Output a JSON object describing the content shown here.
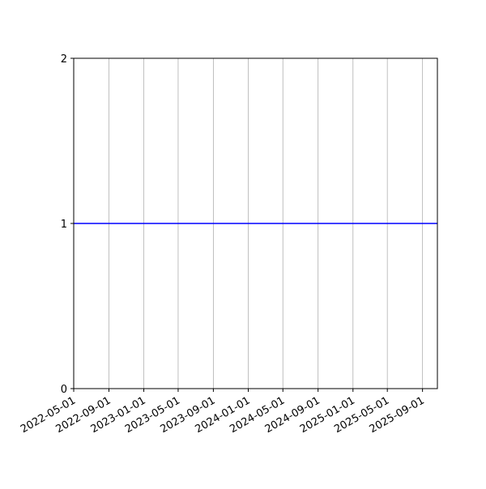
{
  "chart_data": {
    "type": "line",
    "title": "",
    "xlabel": "",
    "ylabel": "",
    "x_axis_type": "date",
    "xlim": [
      "2022-05-01",
      "2025-10-23"
    ],
    "ylim": [
      0,
      2
    ],
    "x_ticks": [
      "2022-05-01",
      "2022-09-01",
      "2023-01-01",
      "2023-05-01",
      "2023-09-01",
      "2024-01-01",
      "2024-05-01",
      "2024-09-01",
      "2025-01-01",
      "2025-05-01",
      "2025-09-01"
    ],
    "y_ticks": [
      0,
      1,
      2
    ],
    "grid": {
      "x": true,
      "y": false
    },
    "series": [
      {
        "color": "#0000ff",
        "x": [
          "2022-05-01",
          "2025-10-23"
        ],
        "y": [
          1,
          1
        ]
      }
    ]
  }
}
